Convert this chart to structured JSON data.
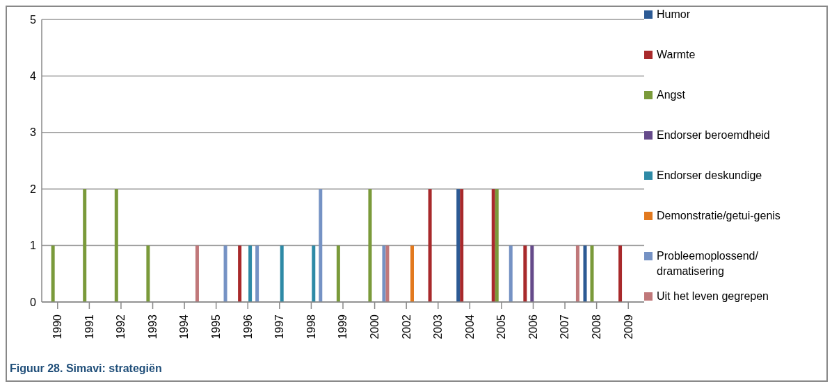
{
  "chart_data": {
    "type": "bar",
    "title": "Figuur 28. Simavi: strategiën",
    "categories": [
      "1990",
      "1991",
      "1992",
      "1993",
      "1994",
      "1995",
      "1996",
      "1997",
      "1998",
      "1999",
      "2000",
      "2002",
      "2003",
      "2004",
      "2005",
      "2006",
      "2007",
      "2008",
      "2009"
    ],
    "series": [
      {
        "name": "Humor",
        "color": "#2c5a94",
        "values": [
          null,
          null,
          null,
          null,
          null,
          null,
          null,
          null,
          null,
          null,
          null,
          null,
          null,
          2,
          null,
          null,
          null,
          1,
          null
        ]
      },
      {
        "name": "Warmte",
        "color": "#a8292b",
        "values": [
          null,
          null,
          null,
          null,
          null,
          null,
          1,
          null,
          null,
          null,
          null,
          null,
          2,
          2,
          2,
          1,
          null,
          null,
          1
        ]
      },
      {
        "name": "Angst",
        "color": "#7a9a3a",
        "values": [
          1,
          2,
          2,
          1,
          null,
          null,
          null,
          null,
          null,
          1,
          2,
          null,
          null,
          null,
          2,
          null,
          null,
          1,
          null
        ]
      },
      {
        "name": "Endorser beroemdheid",
        "color": "#654a8a",
        "values": [
          null,
          null,
          null,
          null,
          null,
          null,
          null,
          null,
          null,
          null,
          null,
          null,
          null,
          null,
          null,
          1,
          null,
          null,
          null
        ]
      },
      {
        "name": "Endorser deskundige",
        "color": "#2e8aa6",
        "values": [
          null,
          null,
          null,
          null,
          null,
          null,
          1,
          1,
          1,
          null,
          null,
          null,
          null,
          null,
          null,
          null,
          null,
          null,
          null
        ]
      },
      {
        "name": "Demonstratie/getui-genis",
        "color": "#e2791e",
        "values": [
          null,
          null,
          null,
          null,
          null,
          null,
          null,
          null,
          null,
          null,
          null,
          1,
          null,
          null,
          null,
          null,
          null,
          null,
          null
        ]
      },
      {
        "name": "Probleemoplossend/ dramatisering",
        "color": "#7592c4",
        "values": [
          null,
          null,
          null,
          null,
          null,
          1,
          1,
          null,
          2,
          null,
          1,
          null,
          null,
          null,
          1,
          null,
          null,
          null,
          null
        ]
      },
      {
        "name": "Uit het leven gegrepen",
        "color": "#c0787a",
        "values": [
          null,
          null,
          null,
          null,
          1,
          null,
          null,
          null,
          null,
          null,
          1,
          null,
          null,
          null,
          null,
          null,
          1,
          null,
          null
        ]
      }
    ],
    "ylim": [
      0,
      5
    ],
    "yticks": [
      0,
      1,
      2,
      3,
      4,
      5
    ],
    "grid": "y",
    "legend": "right"
  }
}
